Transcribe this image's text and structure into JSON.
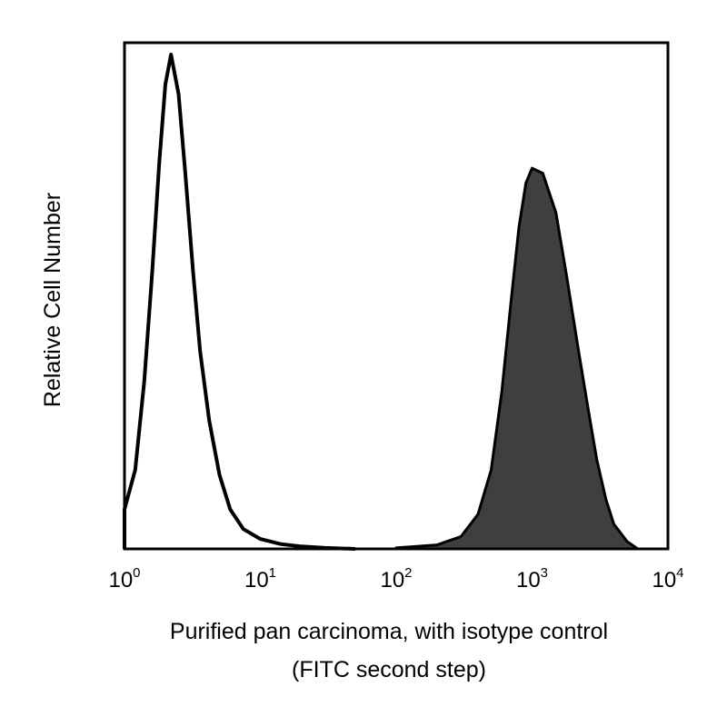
{
  "chart_data": {
    "type": "area",
    "title": "",
    "xlabel_line1": "Purified pan carcinoma, with isotype control",
    "xlabel_line2": "(FITC second step)",
    "ylabel": "Relative Cell Number",
    "x_scale": "log10",
    "xlim": [
      1,
      10000
    ],
    "ylim": [
      0,
      100
    ],
    "grid": false,
    "x_ticks": [
      {
        "base": "10",
        "exp": "0",
        "value": 1
      },
      {
        "base": "10",
        "exp": "1",
        "value": 10
      },
      {
        "base": "10",
        "exp": "2",
        "value": 100
      },
      {
        "base": "10",
        "exp": "3",
        "value": 1000
      },
      {
        "base": "10",
        "exp": "4",
        "value": 10000
      }
    ],
    "series": [
      {
        "style": "outline",
        "color": "#000000",
        "x": [
          1.0,
          1.2,
          1.4,
          1.6,
          1.8,
          2.0,
          2.2,
          2.5,
          2.8,
          3.2,
          3.6,
          4.2,
          5.0,
          6.0,
          7.5,
          10,
          14,
          20,
          30,
          50
        ],
        "y": [
          8,
          16,
          34,
          56,
          78,
          94,
          100,
          92,
          76,
          56,
          40,
          26,
          15,
          8,
          4,
          2,
          1,
          0.5,
          0.2,
          0
        ]
      },
      {
        "style": "filled",
        "color": "#3f3f3f",
        "outline_color": "#000000",
        "x": [
          100,
          200,
          300,
          400,
          500,
          600,
          700,
          800,
          900,
          1000,
          1200,
          1500,
          1800,
          2200,
          2600,
          3000,
          3500,
          4000,
          5000,
          6000
        ],
        "y": [
          0.2,
          0.8,
          2.5,
          7,
          16,
          32,
          50,
          65,
          74,
          77,
          76,
          68,
          55,
          40,
          28,
          18,
          10,
          5,
          1.5,
          0
        ]
      }
    ]
  }
}
